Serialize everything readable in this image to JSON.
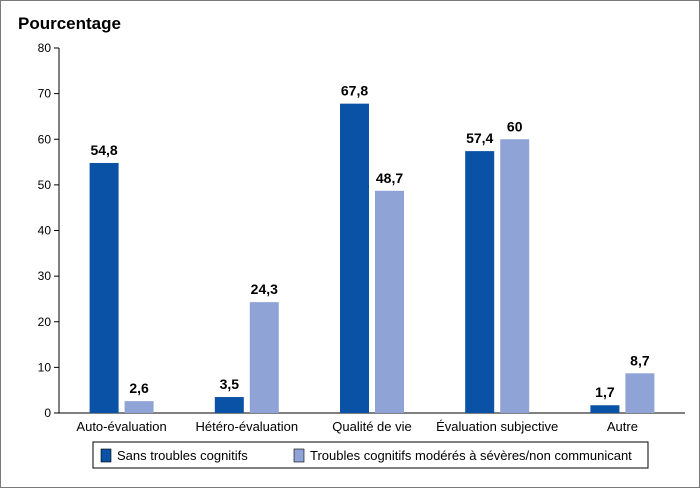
{
  "chart_data": {
    "type": "bar",
    "title": "",
    "ylabel": "Pourcentage",
    "xlabel": "",
    "ylim": [
      0,
      80
    ],
    "yticks": [
      0,
      10,
      20,
      30,
      40,
      50,
      60,
      70,
      80
    ],
    "grid": false,
    "legend_position": "bottom",
    "categories": [
      "Auto-évaluation",
      "Hétéro-évaluation",
      "Qualité de vie",
      "Évaluation subjective",
      "Autre"
    ],
    "series": [
      {
        "name": "Sans troubles cognitifs",
        "color": "#0a52a6",
        "values": [
          54.8,
          3.5,
          67.8,
          57.4,
          1.7
        ],
        "labels": [
          "54,8",
          "3,5",
          "67,8",
          "57,4",
          "1,7"
        ]
      },
      {
        "name": "Troubles cognitifs modérés à sévères/non communicant",
        "color": "#8fa3d6",
        "values": [
          2.6,
          24.3,
          48.7,
          60,
          8.7
        ],
        "labels": [
          "2,6",
          "24,3",
          "48,7",
          "60",
          "8,7"
        ]
      }
    ]
  }
}
